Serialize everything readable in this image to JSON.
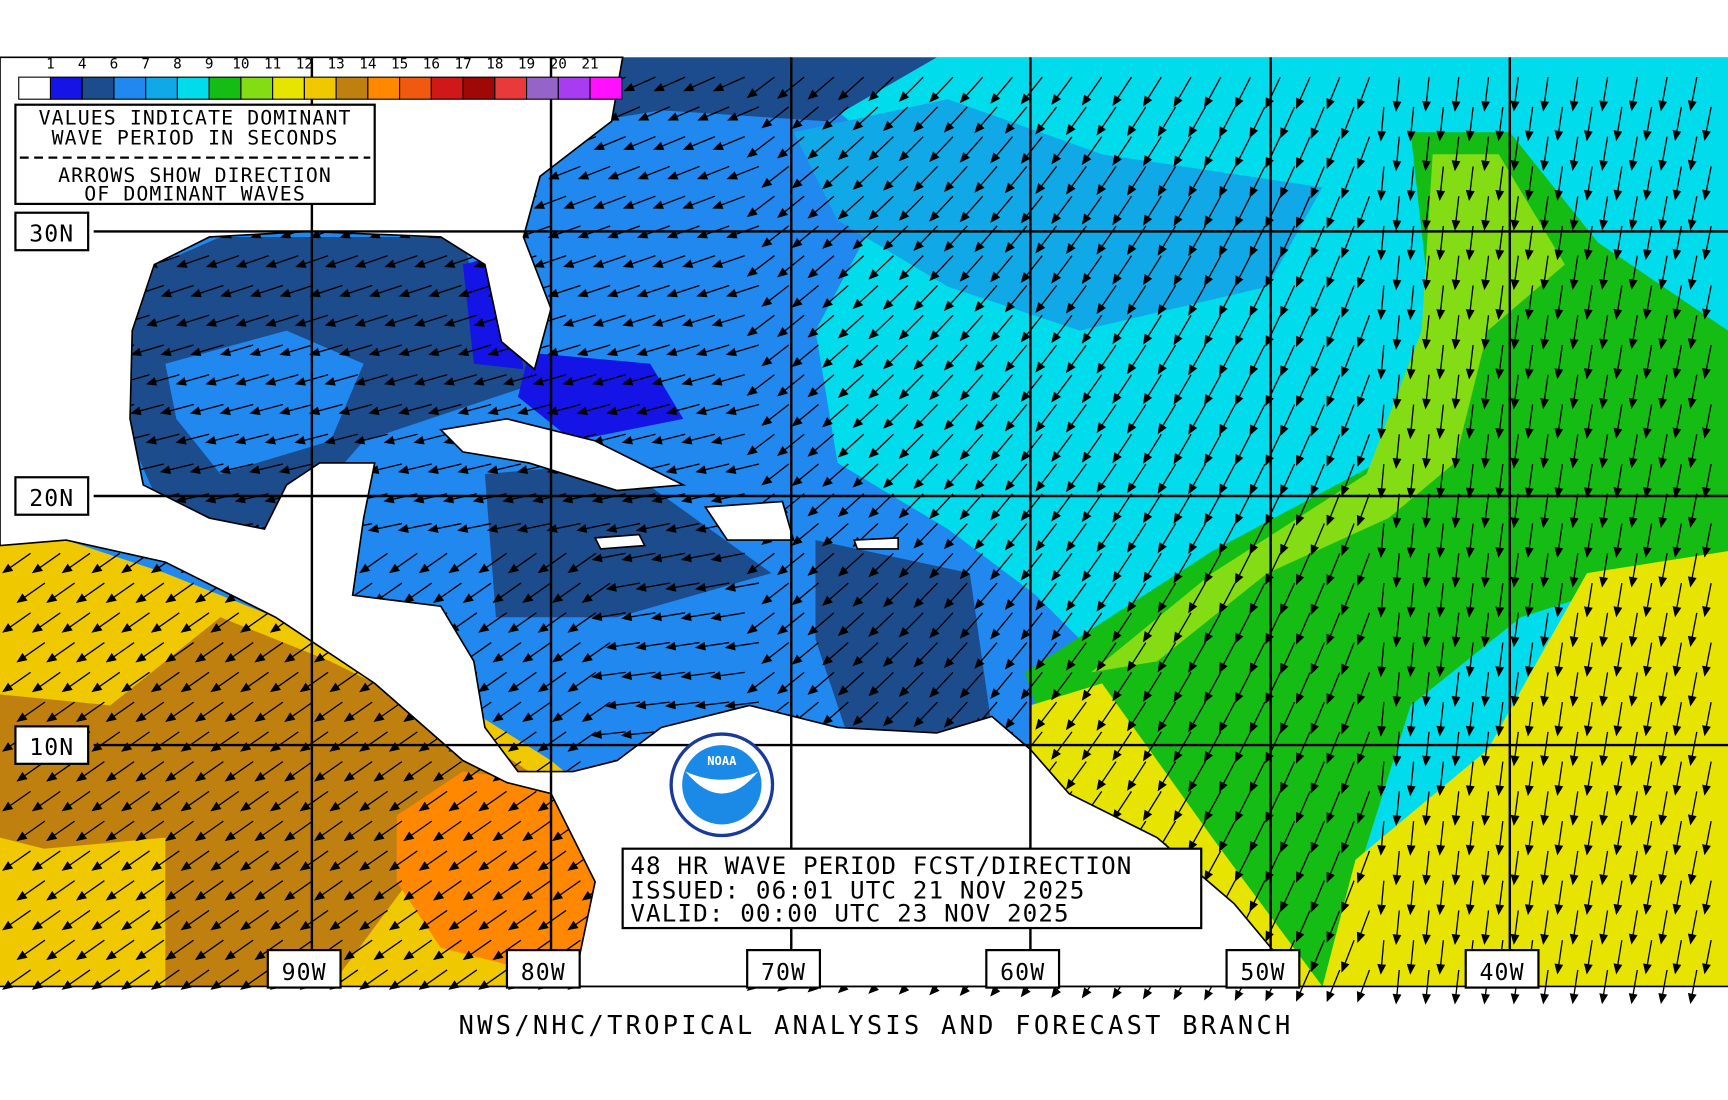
{
  "legend": {
    "labels": [
      "1",
      "4",
      "6",
      "7",
      "8",
      "9",
      "10",
      "11",
      "12",
      "13",
      "14",
      "15",
      "16",
      "17",
      "18",
      "19",
      "20",
      "21"
    ],
    "colors": [
      "#ffffff",
      "#1414e6",
      "#1c4c8c",
      "#2088ee",
      "#10a8e6",
      "#00dcec",
      "#14bc14",
      "#84dc14",
      "#e6e400",
      "#f0c800",
      "#c08010",
      "#ff8800",
      "#f05a10",
      "#d01818",
      "#a00808",
      "#e83a3a",
      "#9464c8",
      "#a83cf0",
      "#ff10ff"
    ]
  },
  "info_box": {
    "lines": [
      "VALUES INDICATE DOMINANT",
      "WAVE PERIOD IN SECONDS",
      "ARROWS SHOW DIRECTION",
      "OF DOMINANT WAVES"
    ]
  },
  "latitude_labels": [
    "30N",
    "20N",
    "10N"
  ],
  "longitude_labels": [
    "90W",
    "80W",
    "70W",
    "60W",
    "50W",
    "40W"
  ],
  "title_box": {
    "lines": [
      "48 HR WAVE PERIOD FCST/DIRECTION",
      "ISSUED: 06:01 UTC 21 NOV 2025",
      "VALID:  00:00 UTC 23 NOV 2025"
    ]
  },
  "logo": "NOAA",
  "footer": "NWS/NHC/TROPICAL ANALYSIS AND FORECAST BRANCH"
}
